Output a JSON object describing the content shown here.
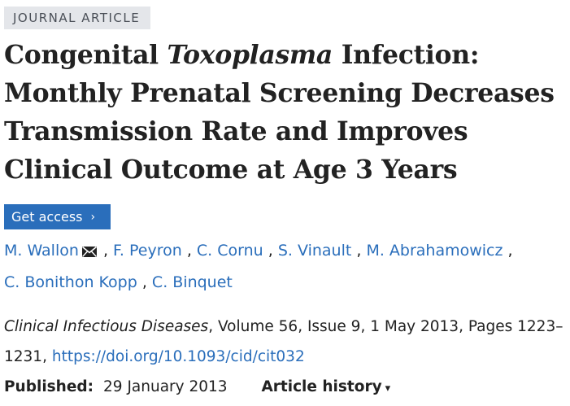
{
  "badge": "JOURNAL ARTICLE",
  "title": {
    "part1": "Congenital ",
    "italic": "Toxoplasma",
    "part2": " Infection: Monthly Prenatal Screening Decreases Transmission Rate and Improves Clinical Outcome at Age 3 Years"
  },
  "access": {
    "label": "Get access",
    "chevron": "›"
  },
  "authors": [
    "M. Wallon",
    "F. Peyron",
    "C. Cornu",
    "S. Vinault",
    "M. Abrahamowicz",
    "C. Bonithon Kopp",
    "C. Binquet"
  ],
  "author_separator": " , ",
  "icons": {
    "contact": "envelope-icon",
    "history": "triangle-down-icon"
  },
  "citation": {
    "journal": "Clinical Infectious Diseases",
    "details": ", Volume 56, Issue 9, 1 May 2013, Pages 1223–1231, ",
    "doi": "https://doi.org/10.1093/cid/cit032"
  },
  "published": {
    "label": "Published:",
    "date": "29 January 2013"
  },
  "history": {
    "label": "Article history",
    "arrow": "▾"
  },
  "colors": {
    "link": "#2a6ebb",
    "button": "#2a6ebb",
    "badge_bg": "#e4e6ea"
  }
}
